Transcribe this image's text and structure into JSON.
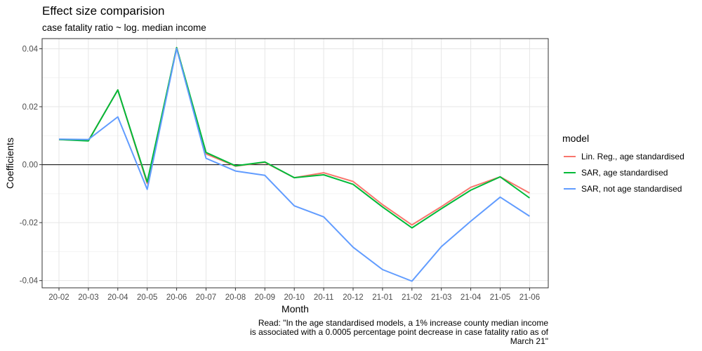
{
  "chart_data": {
    "type": "line",
    "title": "Effect size comparision",
    "subtitle": "case fatality ratio ~ log. median income",
    "xlabel": "Month",
    "ylabel": "Coefficients",
    "categories": [
      "20-02",
      "20-03",
      "20-04",
      "20-05",
      "20-06",
      "20-07",
      "20-08",
      "20-09",
      "20-10",
      "20-11",
      "20-12",
      "21-01",
      "21-02",
      "21-03",
      "21-04",
      "21-05",
      "21-06"
    ],
    "ylim": [
      -0.0425,
      0.0435
    ],
    "y_ticks": [
      -0.04,
      -0.02,
      0.0,
      0.02,
      0.04
    ],
    "y_tick_labels": [
      "-0.04",
      "-0.02",
      "0.00",
      "0.02",
      "0.04"
    ],
    "reference_line_y": 0,
    "grid": true,
    "legend": {
      "title": "model",
      "position": "right"
    },
    "series": [
      {
        "name": "Lin. Reg., age standardised",
        "color": "#F8766D",
        "values": [
          0.0087,
          0.0083,
          0.0258,
          -0.0065,
          0.0404,
          0.0037,
          -0.0005,
          0.0008,
          -0.0045,
          -0.0028,
          -0.0058,
          -0.0138,
          -0.0208,
          -0.0145,
          -0.0078,
          -0.0042,
          -0.0098
        ]
      },
      {
        "name": "SAR, age standardised",
        "color": "#00BA38",
        "values": [
          0.0087,
          0.0082,
          0.0258,
          -0.006,
          0.0404,
          0.0042,
          -0.0004,
          0.0009,
          -0.0045,
          -0.0035,
          -0.0068,
          -0.0146,
          -0.0218,
          -0.0152,
          -0.0088,
          -0.0042,
          -0.0115
        ]
      },
      {
        "name": "SAR, not age standardised",
        "color": "#619CFF",
        "values": [
          0.0088,
          0.0087,
          0.0165,
          -0.0085,
          0.0401,
          0.0022,
          -0.0022,
          -0.0037,
          -0.0142,
          -0.018,
          -0.0285,
          -0.0362,
          -0.0402,
          -0.0283,
          -0.0195,
          -0.0112,
          -0.0178
        ]
      }
    ]
  },
  "caption": {
    "line1": "Read: \"In the age standardised models, a 1% increase county median income",
    "line2": "is associated with a 0.0005 percentage point decrease in case fatality ratio as of",
    "line3": "March 21\""
  }
}
